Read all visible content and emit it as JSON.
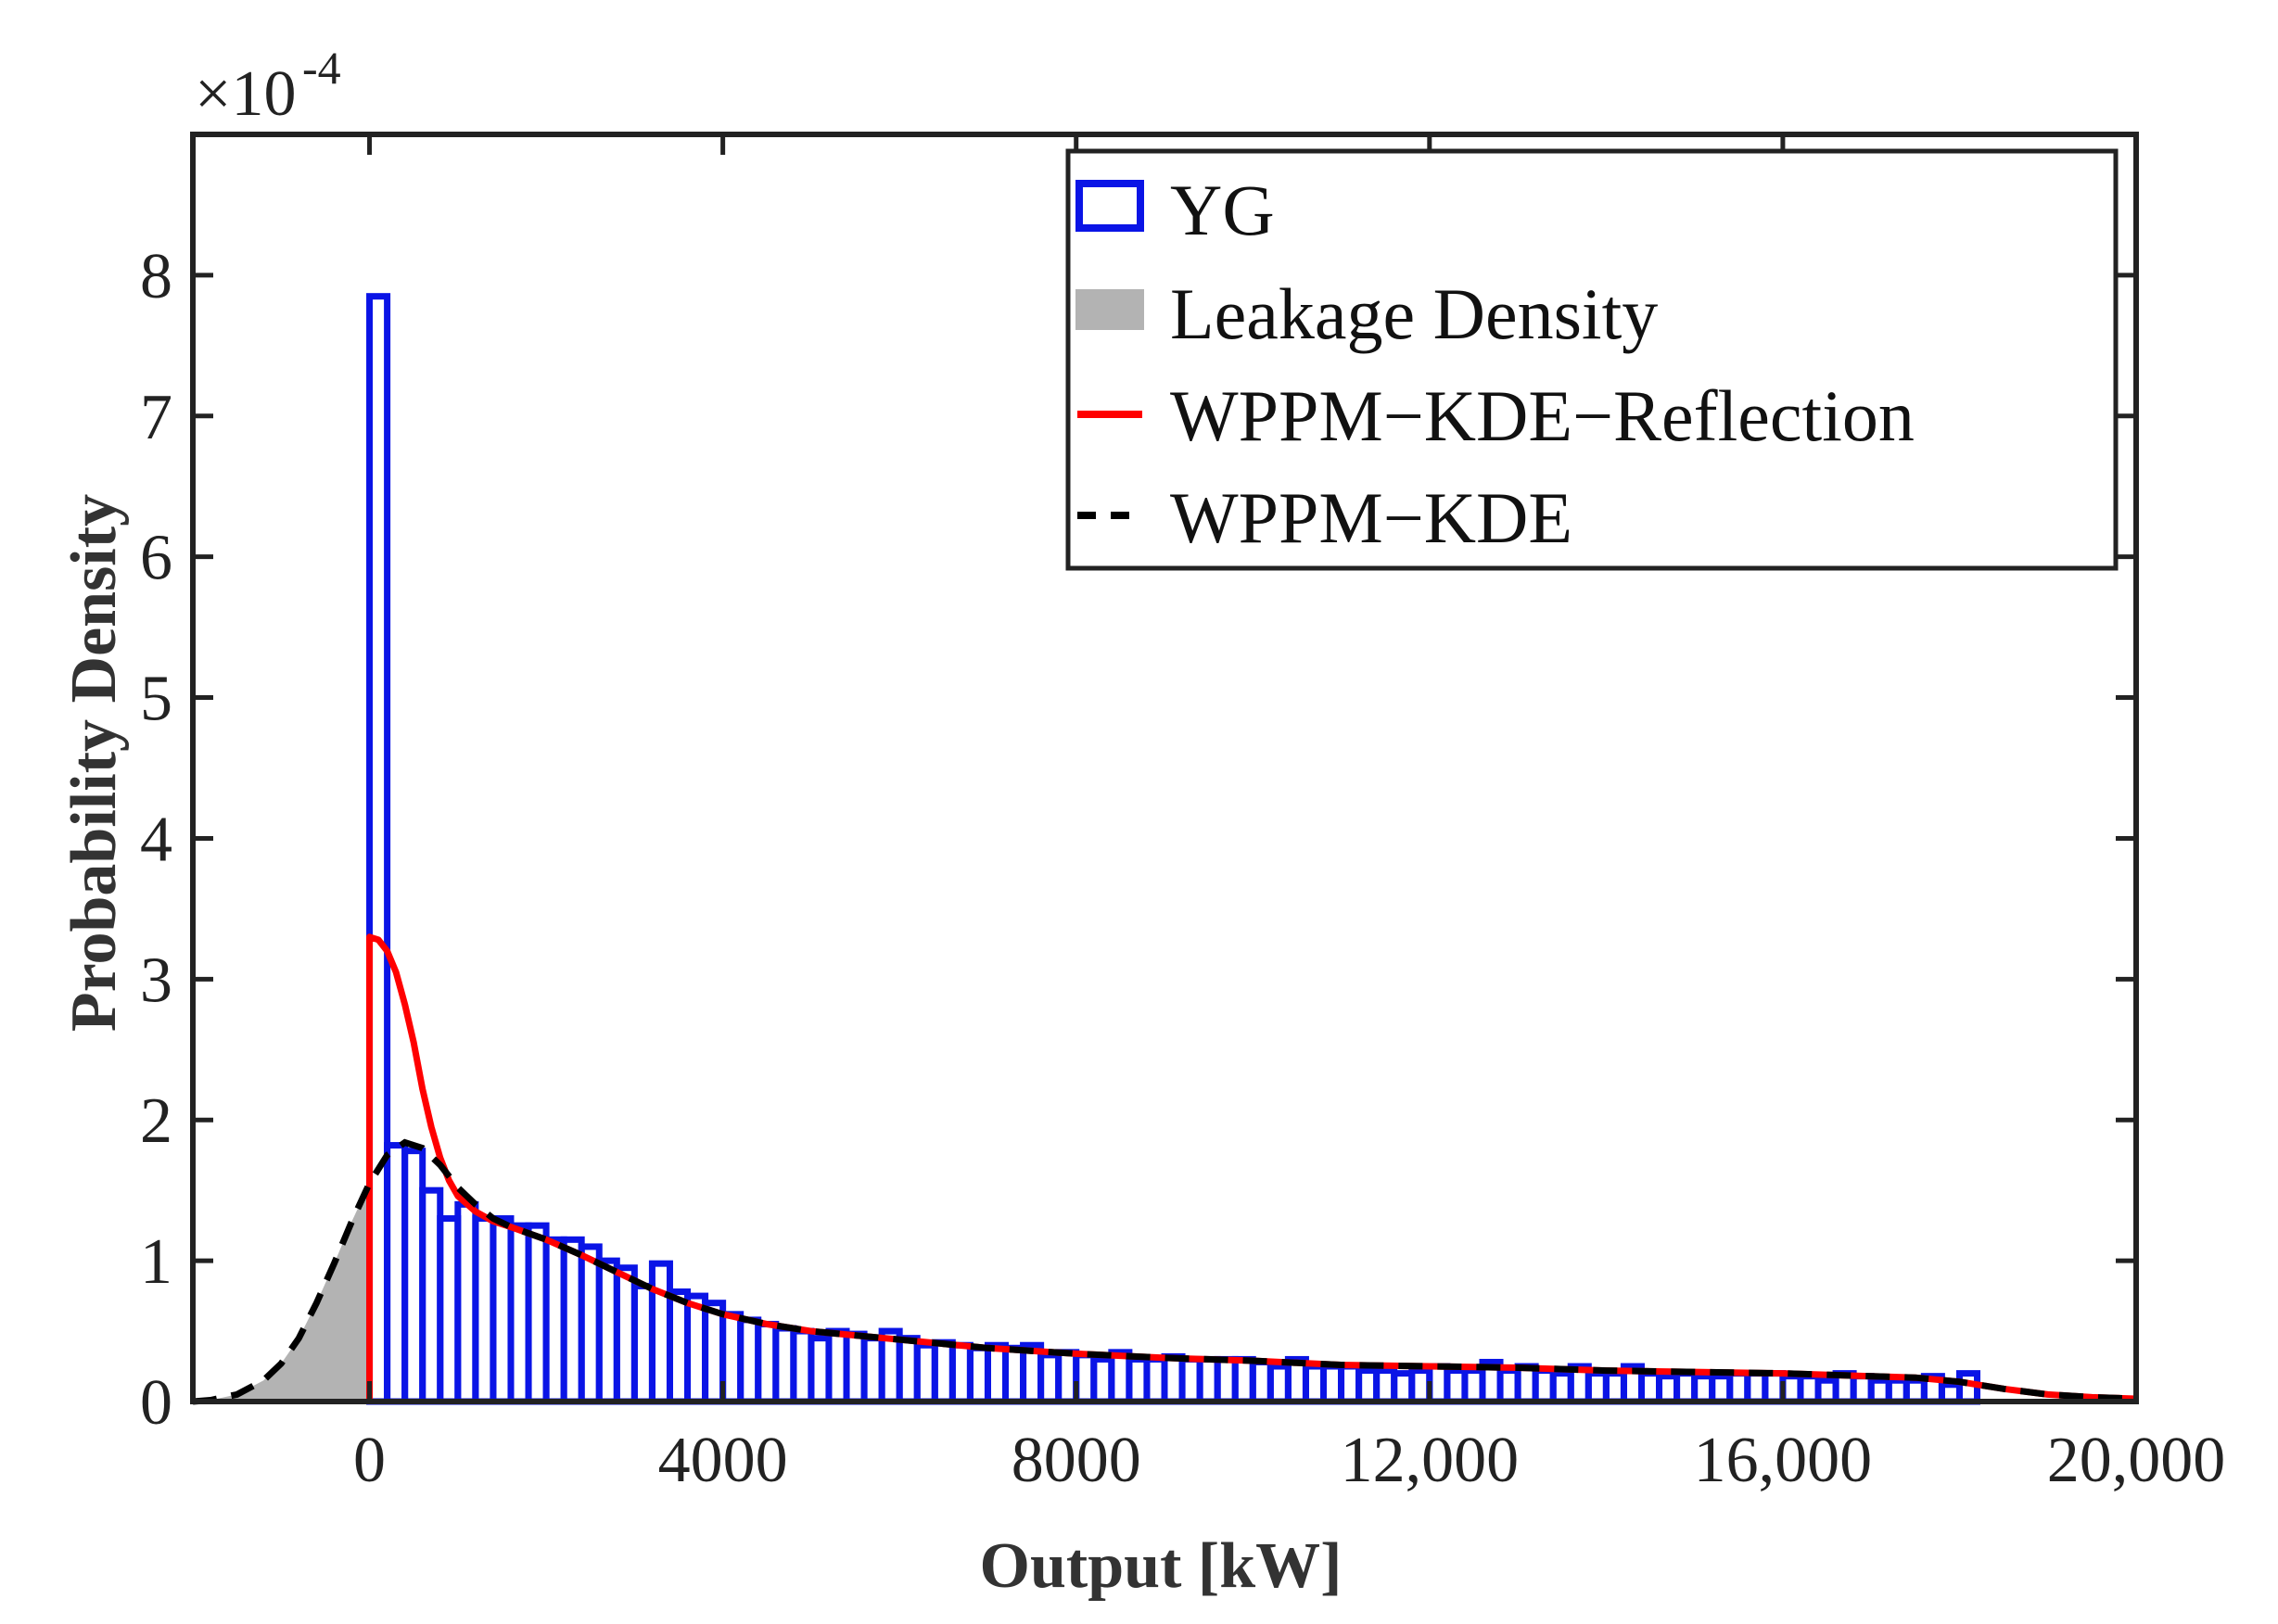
{
  "chart_data": {
    "type": "histogram+line",
    "title": "",
    "xlabel": "Output [kW]",
    "ylabel": "Probability Density",
    "y_exponent": "×10",
    "y_exponent_power": "-4",
    "xlim": [
      -2000,
      20000
    ],
    "ylim": [
      0,
      9
    ],
    "grid": false,
    "legend_position": "top-right",
    "x_ticks": [
      0,
      4000,
      8000,
      12000,
      16000,
      20000
    ],
    "x_tick_labels": [
      "0",
      "4000",
      "8000",
      "12,000",
      "16,000",
      "20,000"
    ],
    "y_ticks": [
      0,
      1,
      2,
      3,
      4,
      5,
      6,
      7,
      8
    ],
    "y_tick_labels": [
      "0",
      "1",
      "2",
      "3",
      "4",
      "5",
      "6",
      "7",
      "8"
    ],
    "legend": {
      "yg": "YG",
      "leakage": "Leakage Density",
      "reflection": "WPPM−KDE−Reflection",
      "kde": "WPPM−KDE"
    },
    "colors": {
      "yg": "#0a14e6",
      "leakage": "#b3b3b3",
      "reflection": "#ff0000",
      "kde": "#000000",
      "axes": "#222222"
    },
    "histogram_yg": {
      "name": "YG",
      "bin_width": 200,
      "bin_start": 0,
      "values": [
        7.85,
        1.82,
        1.78,
        1.5,
        1.3,
        1.4,
        1.3,
        1.3,
        1.25,
        1.25,
        1.15,
        1.15,
        1.1,
        1.0,
        0.95,
        0.82,
        0.98,
        0.78,
        0.75,
        0.7,
        0.62,
        0.58,
        0.55,
        0.52,
        0.5,
        0.45,
        0.5,
        0.48,
        0.45,
        0.5,
        0.45,
        0.4,
        0.42,
        0.4,
        0.38,
        0.4,
        0.38,
        0.4,
        0.33,
        0.35,
        0.33,
        0.3,
        0.35,
        0.3,
        0.3,
        0.32,
        0.3,
        0.3,
        0.3,
        0.3,
        0.28,
        0.25,
        0.3,
        0.25,
        0.25,
        0.25,
        0.22,
        0.22,
        0.2,
        0.22,
        0.25,
        0.22,
        0.22,
        0.28,
        0.22,
        0.25,
        0.22,
        0.2,
        0.25,
        0.2,
        0.2,
        0.25,
        0.2,
        0.18,
        0.2,
        0.18,
        0.18,
        0.2,
        0.2,
        0.2,
        0.18,
        0.18,
        0.15,
        0.2,
        0.18,
        0.15,
        0.15,
        0.15,
        0.18,
        0.12,
        0.2
      ]
    },
    "series": [
      {
        "name": "WPPM−KDE−Reflection",
        "style": "solid",
        "x": [
          0,
          100,
          200,
          300,
          400,
          500,
          600,
          700,
          800,
          900,
          1000,
          1200,
          1400,
          1600,
          2000,
          2400,
          2800,
          3200,
          3600,
          4000,
          4500,
          5000,
          6000,
          7000,
          8000,
          9000,
          10000,
          11000,
          12000,
          13000,
          14000,
          15000,
          16000,
          17000,
          17500,
          18000,
          18500,
          19000,
          19500,
          20000
        ],
        "y": [
          3.3,
          3.28,
          3.2,
          3.05,
          2.82,
          2.55,
          2.22,
          1.95,
          1.73,
          1.57,
          1.46,
          1.35,
          1.28,
          1.24,
          1.15,
          1.04,
          0.92,
          0.8,
          0.7,
          0.62,
          0.55,
          0.5,
          0.44,
          0.38,
          0.34,
          0.31,
          0.29,
          0.26,
          0.25,
          0.24,
          0.22,
          0.21,
          0.2,
          0.18,
          0.17,
          0.14,
          0.09,
          0.05,
          0.03,
          0.02
        ]
      },
      {
        "name": "WPPM−KDE",
        "style": "dashed",
        "x": [
          -2000,
          -1800,
          -1500,
          -1200,
          -1000,
          -800,
          -600,
          -400,
          -200,
          0,
          200,
          400,
          600,
          800,
          1000,
          1200,
          1400,
          1600,
          2000,
          2400,
          2800,
          3200,
          3600,
          4000,
          4500,
          5000,
          6000,
          7000,
          8000,
          9000,
          10000,
          11000,
          12000,
          13000,
          14000,
          15000,
          16000,
          17000,
          17500,
          18000,
          18500,
          19000,
          19500,
          20000
        ],
        "y": [
          0.0,
          0.01,
          0.05,
          0.15,
          0.27,
          0.45,
          0.7,
          0.98,
          1.28,
          1.55,
          1.75,
          1.84,
          1.8,
          1.68,
          1.52,
          1.4,
          1.3,
          1.24,
          1.15,
          1.04,
          0.92,
          0.8,
          0.7,
          0.62,
          0.55,
          0.5,
          0.44,
          0.38,
          0.34,
          0.31,
          0.29,
          0.26,
          0.25,
          0.24,
          0.22,
          0.21,
          0.2,
          0.18,
          0.17,
          0.14,
          0.09,
          0.05,
          0.03,
          0.02
        ]
      }
    ],
    "leakage_area": {
      "name": "Leakage Density",
      "x": [
        -2000,
        -1800,
        -1500,
        -1200,
        -1000,
        -800,
        -600,
        -400,
        -200,
        0
      ],
      "y": [
        0.0,
        0.01,
        0.05,
        0.15,
        0.27,
        0.45,
        0.7,
        0.98,
        1.28,
        1.55
      ]
    }
  }
}
